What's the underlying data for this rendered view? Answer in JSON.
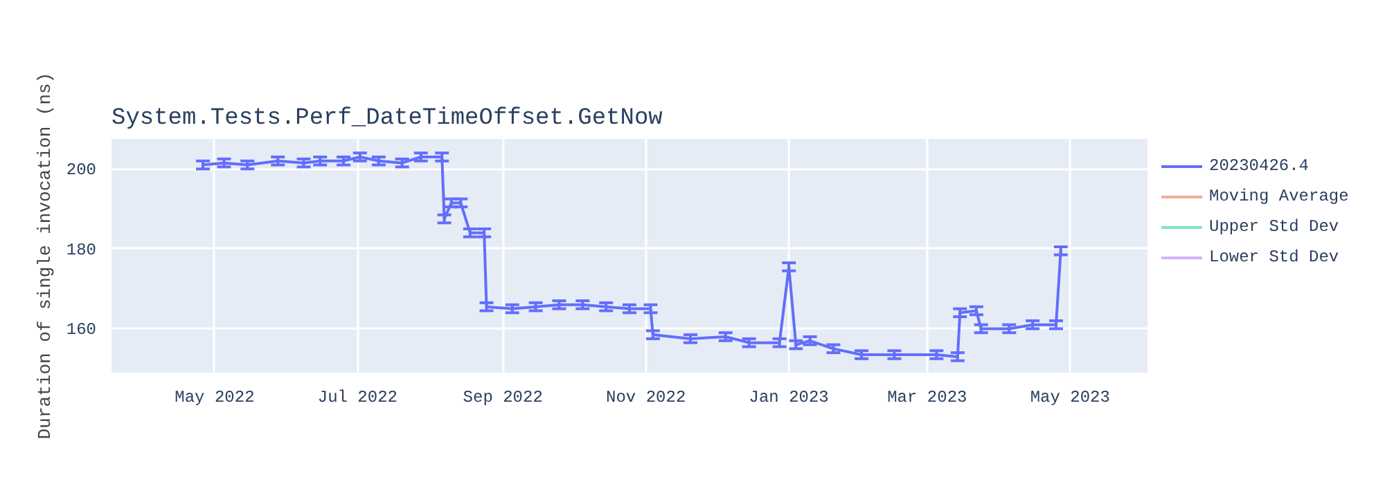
{
  "chart_data": {
    "type": "line",
    "title": "System.Tests.Perf_DateTimeOffset.GetNow",
    "ylabel": "Duration of single invocation (ns)",
    "x": [
      "2022-04-26",
      "2022-05-05",
      "2022-05-15",
      "2022-05-28",
      "2022-06-08",
      "2022-06-15",
      "2022-06-25",
      "2022-07-02",
      "2022-07-10",
      "2022-07-20",
      "2022-07-28",
      "2022-08-06",
      "2022-08-07",
      "2022-08-10",
      "2022-08-14",
      "2022-08-18",
      "2022-08-24",
      "2022-08-25",
      "2022-09-05",
      "2022-09-15",
      "2022-09-25",
      "2022-10-05",
      "2022-10-15",
      "2022-10-25",
      "2022-11-03",
      "2022-11-04",
      "2022-11-20",
      "2022-12-05",
      "2022-12-15",
      "2022-12-28",
      "2023-01-01",
      "2023-01-04",
      "2023-01-10",
      "2023-01-20",
      "2023-02-01",
      "2023-02-15",
      "2023-03-05",
      "2023-03-14",
      "2023-03-15",
      "2023-03-22",
      "2023-03-24",
      "2023-04-05",
      "2023-04-15",
      "2023-04-25",
      "2023-04-27"
    ],
    "series": [
      {
        "name": "20230426.4",
        "color": "#636efa",
        "values": [
          201,
          201.5,
          201,
          202,
          201.5,
          202,
          202,
          203,
          202,
          201.5,
          203,
          203,
          187.5,
          191.5,
          191.5,
          184,
          184,
          165.5,
          165,
          165.5,
          166,
          166,
          165.5,
          165,
          165,
          158.5,
          157.5,
          158,
          156.5,
          156.5,
          175.5,
          156,
          157,
          155,
          153.5,
          153.5,
          153.5,
          153,
          164,
          164.5,
          160,
          160,
          161,
          161,
          179.5
        ],
        "errors": [
          1,
          1,
          1,
          1,
          1,
          1,
          1,
          1,
          1,
          1,
          1,
          1,
          1,
          1,
          1,
          1,
          1,
          1,
          1,
          1,
          1,
          1,
          1,
          1,
          1,
          1,
          1,
          1,
          1,
          1,
          1,
          1,
          1,
          1,
          1,
          1,
          1,
          1,
          1,
          1,
          1,
          1,
          1,
          1,
          1
        ]
      },
      {
        "name": "Moving Average",
        "color": "#ef553b",
        "values": [
          null,
          null,
          null,
          null,
          null,
          null,
          null,
          null,
          null,
          null,
          null,
          null,
          null,
          null,
          null,
          null,
          null,
          null,
          null,
          null,
          null,
          null,
          null,
          null,
          null,
          null,
          null,
          null,
          null,
          null,
          null,
          null,
          null,
          null,
          null,
          null,
          null,
          null,
          null,
          null,
          null,
          null,
          null,
          null,
          null
        ]
      },
      {
        "name": "Upper Std Dev",
        "color": "#00cc96",
        "values": [
          null,
          null,
          null,
          null,
          null,
          null,
          null,
          null,
          null,
          null,
          null,
          null,
          null,
          null,
          null,
          null,
          null,
          null,
          null,
          null,
          null,
          null,
          null,
          null,
          null,
          null,
          null,
          null,
          null,
          null,
          null,
          null,
          null,
          null,
          null,
          null,
          null,
          null,
          null,
          null,
          null,
          null,
          null,
          null,
          null
        ]
      },
      {
        "name": "Lower Std Dev",
        "color": "#ab63fa",
        "values": [
          null,
          null,
          null,
          null,
          null,
          null,
          null,
          null,
          null,
          null,
          null,
          null,
          null,
          null,
          null,
          null,
          null,
          null,
          null,
          null,
          null,
          null,
          null,
          null,
          null,
          null,
          null,
          null,
          null,
          null,
          null,
          null,
          null,
          null,
          null,
          null,
          null,
          null,
          null,
          null,
          null,
          null,
          null,
          null,
          null
        ]
      }
    ],
    "xlim": [
      "2022-03-18",
      "2023-06-03"
    ],
    "ylim": [
      149,
      207.5
    ],
    "xticks": [
      {
        "value": "2022-05-01",
        "label": "May 2022"
      },
      {
        "value": "2022-07-01",
        "label": "Jul 2022"
      },
      {
        "value": "2022-09-01",
        "label": "Sep 2022"
      },
      {
        "value": "2022-11-01",
        "label": "Nov 2022"
      },
      {
        "value": "2023-01-01",
        "label": "Jan 2023"
      },
      {
        "value": "2023-03-01",
        "label": "Mar 2023"
      },
      {
        "value": "2023-05-01",
        "label": "May 2023"
      }
    ],
    "yticks": [
      160,
      180,
      200
    ],
    "grid": true,
    "legend": "top right",
    "line_style": "solid",
    "marker": "none"
  }
}
